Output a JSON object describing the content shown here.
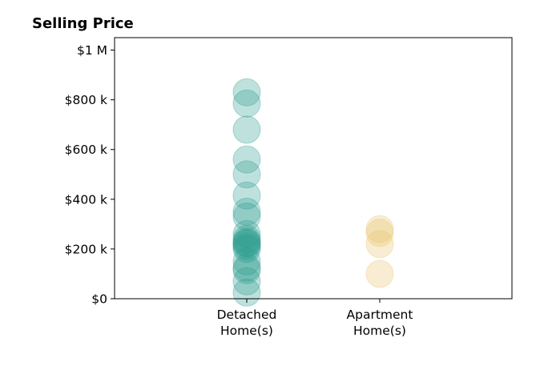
{
  "chart_data": {
    "type": "scatter",
    "title": "Selling Price",
    "xlabel": "",
    "ylabel": "",
    "categories": [
      [
        "Detached",
        "Home(s)"
      ],
      [
        "Apartment",
        "Home(s)"
      ]
    ],
    "ylim": [
      0,
      1050000
    ],
    "yticks": [
      0,
      200000,
      400000,
      600000,
      800000,
      1000000
    ],
    "yticklabels": [
      "$0",
      "$200 k",
      "$400 k",
      "$600 k",
      "$800 k",
      "$1 M"
    ],
    "grid": false,
    "series": [
      {
        "category": 0,
        "color": "#2a9d8f",
        "values": [
          830000,
          785000,
          680000,
          560000,
          500000,
          415000,
          350000,
          330000,
          260000,
          240000,
          230000,
          225000,
          220000,
          210000,
          200000,
          150000,
          125000,
          115000,
          70000,
          25000
        ]
      },
      {
        "category": 1,
        "color": "#e9c46a",
        "values": [
          280000,
          265000,
          220000,
          100000
        ]
      }
    ]
  }
}
